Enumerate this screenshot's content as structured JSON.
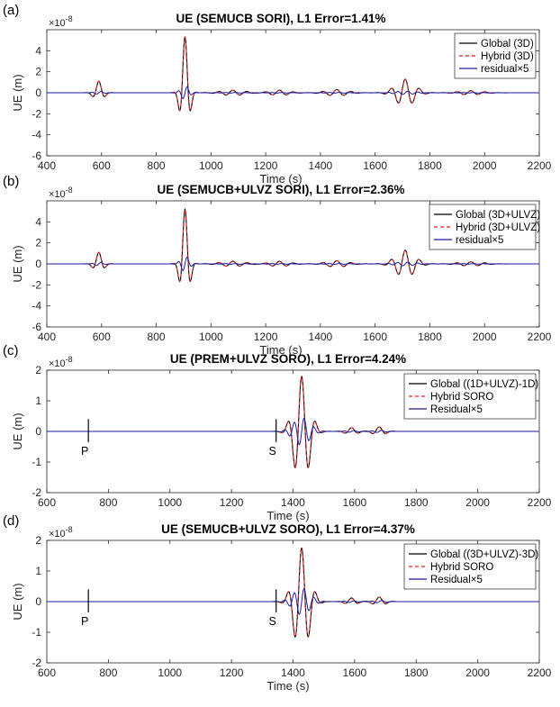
{
  "colors": {
    "global": "#000000",
    "hybrid": "#e8201a",
    "residual": "#1a1aa8",
    "axis": "#262626",
    "grid": "#dcdcdc"
  },
  "chart_data": [
    {
      "type": "line",
      "panel": "(a)",
      "title": "UE (SEMUCB SORI), L1 Error=1.41%",
      "xlabel": "Time (s)",
      "ylabel": "UE (m)",
      "y_multiplier": "×10",
      "y_exponent": "-8",
      "xlim": [
        400,
        2200
      ],
      "ylim": [
        -6,
        6
      ],
      "xticks": [
        400,
        600,
        800,
        1000,
        1200,
        1400,
        1600,
        1800,
        2000,
        2200
      ],
      "yticks": [
        -6,
        -4,
        -2,
        0,
        2,
        4
      ],
      "legend_position": "top-right",
      "series": [
        {
          "name": "Global (3D)",
          "style": "solid-black"
        },
        {
          "name": "Hybrid (3D)",
          "style": "dashed-red"
        },
        {
          "name": "residual×5",
          "style": "solid-blue"
        }
      ],
      "packets": [
        {
          "t": 590,
          "amp": 1.1,
          "period": 26,
          "width": 22
        },
        {
          "t": 905,
          "amp": 5.3,
          "period": 24,
          "width": 20
        },
        {
          "t": 1080,
          "amp": 0.25,
          "period": 26,
          "width": 60
        },
        {
          "t": 1250,
          "amp": 0.25,
          "period": 26,
          "width": 50
        },
        {
          "t": 1460,
          "amp": 0.3,
          "period": 26,
          "width": 55
        },
        {
          "t": 1710,
          "amp": 1.3,
          "period": 26,
          "width": 48
        },
        {
          "t": 1950,
          "amp": 0.2,
          "period": 26,
          "width": 60
        }
      ],
      "residual_scale": 0.12,
      "phase_marks": []
    },
    {
      "type": "line",
      "panel": "(b)",
      "title": "UE (SEMUCB+ULVZ SORI), L1 Error=2.36%",
      "xlabel": "Time (s)",
      "ylabel": "UE (m)",
      "y_multiplier": "×10",
      "y_exponent": "-8",
      "xlim": [
        400,
        2200
      ],
      "ylim": [
        -6,
        6
      ],
      "xticks": [
        400,
        600,
        800,
        1000,
        1200,
        1400,
        1600,
        1800,
        2000,
        2200
      ],
      "yticks": [
        -6,
        -4,
        -2,
        0,
        2,
        4
      ],
      "legend_position": "top-right",
      "series": [
        {
          "name": "Global (3D+ULVZ)",
          "style": "solid-black"
        },
        {
          "name": "Hybrid (3D+ULVZ)",
          "style": "dashed-red"
        },
        {
          "name": "residual×5",
          "style": "solid-blue"
        }
      ],
      "packets": [
        {
          "t": 590,
          "amp": 1.1,
          "period": 26,
          "width": 22
        },
        {
          "t": 905,
          "amp": 5.2,
          "period": 24,
          "width": 20
        },
        {
          "t": 1080,
          "amp": 0.25,
          "period": 26,
          "width": 60
        },
        {
          "t": 1250,
          "amp": 0.25,
          "period": 26,
          "width": 50
        },
        {
          "t": 1460,
          "amp": 0.3,
          "period": 26,
          "width": 55
        },
        {
          "t": 1710,
          "amp": 1.3,
          "period": 26,
          "width": 48
        },
        {
          "t": 1950,
          "amp": 0.2,
          "period": 26,
          "width": 60
        }
      ],
      "residual_scale": 0.14,
      "phase_marks": []
    },
    {
      "type": "line",
      "panel": "(c)",
      "title": "UE (PREM+ULVZ SORO), L1 Error=4.24%",
      "xlabel": "Time (s)",
      "ylabel": "UE (m)",
      "y_multiplier": "×10",
      "y_exponent": "-8",
      "xlim": [
        600,
        2200
      ],
      "ylim": [
        -2,
        2
      ],
      "xticks": [
        600,
        800,
        1000,
        1200,
        1400,
        1600,
        1800,
        2000,
        2200
      ],
      "yticks": [
        -2,
        -1,
        0,
        1,
        2
      ],
      "legend_position": "top-right",
      "series": [
        {
          "name": "Global ((1D+ULVZ)-1D)",
          "style": "solid-black"
        },
        {
          "name": "Hybrid SORO",
          "style": "dashed-red"
        },
        {
          "name": "Residual×5",
          "style": "solid-blue"
        }
      ],
      "packets": [
        {
          "t": 1428,
          "amp": 1.8,
          "period": 23,
          "width": 34
        },
        {
          "t": 1590,
          "amp": 0.12,
          "period": 24,
          "width": 25
        },
        {
          "t": 1680,
          "amp": 0.15,
          "period": 24,
          "width": 25
        }
      ],
      "residual_scale": 0.25,
      "phase_marks": [
        {
          "label": "P",
          "t": 735
        },
        {
          "label": "S",
          "t": 1345
        }
      ]
    },
    {
      "type": "line",
      "panel": "(d)",
      "title": "UE (SEMUCB+ULVZ SORO), L1 Error=4.37%",
      "xlabel": "Time (s)",
      "ylabel": "UE (m)",
      "y_multiplier": "×10",
      "y_exponent": "-8",
      "xlim": [
        600,
        2200
      ],
      "ylim": [
        -2,
        2
      ],
      "xticks": [
        600,
        800,
        1000,
        1200,
        1400,
        1600,
        1800,
        2000,
        2200
      ],
      "yticks": [
        -2,
        -1,
        0,
        1,
        2
      ],
      "legend_position": "top-right",
      "series": [
        {
          "name": "Global ((3D+ULVZ)-3D)",
          "style": "solid-black"
        },
        {
          "name": "Hybrid SORO",
          "style": "dashed-red"
        },
        {
          "name": "Residual×5",
          "style": "solid-blue"
        }
      ],
      "packets": [
        {
          "t": 1428,
          "amp": 1.75,
          "period": 23,
          "width": 34
        },
        {
          "t": 1590,
          "amp": 0.12,
          "period": 24,
          "width": 25
        },
        {
          "t": 1680,
          "amp": 0.15,
          "period": 24,
          "width": 25
        }
      ],
      "residual_scale": 0.25,
      "phase_marks": [
        {
          "label": "P",
          "t": 735
        },
        {
          "label": "S",
          "t": 1345
        }
      ]
    }
  ]
}
